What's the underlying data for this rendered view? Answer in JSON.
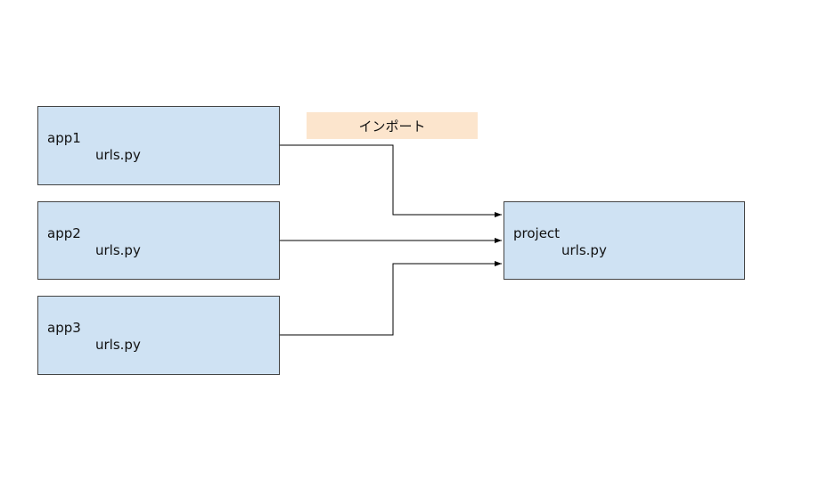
{
  "diagram": {
    "note": "インポート",
    "sources": [
      {
        "name": "app1",
        "file": "urls.py"
      },
      {
        "name": "app2",
        "file": "urls.py"
      },
      {
        "name": "app3",
        "file": "urls.py"
      }
    ],
    "target": {
      "name": "project",
      "file": "urls.py"
    },
    "colors": {
      "box_fill": "#cfe2f3",
      "note_fill": "#fce5cd",
      "line": "#000000"
    }
  }
}
